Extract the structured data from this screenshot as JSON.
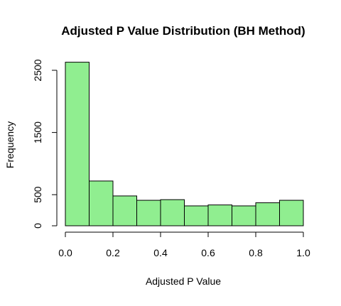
{
  "chart_data": {
    "type": "bar",
    "title": "Adjusted P Value Distribution (BH Method)",
    "xlabel": "Adjusted P Value",
    "ylabel": "Frequency",
    "bin_edges": [
      0.0,
      0.1,
      0.2,
      0.3,
      0.4,
      0.5,
      0.6,
      0.7,
      0.8,
      0.9,
      1.0
    ],
    "values": [
      2630,
      720,
      480,
      410,
      420,
      320,
      335,
      320,
      370,
      410
    ],
    "xlim": [
      0,
      1
    ],
    "ylim": [
      0,
      2500
    ],
    "x_ticks": [
      "0.0",
      "0.2",
      "0.4",
      "0.6",
      "0.8",
      "1.0"
    ],
    "y_ticks": [
      "0",
      "500",
      "1500",
      "2500"
    ],
    "bar_color": "#90EE90",
    "bar_stroke": "#000000",
    "grid": false
  }
}
